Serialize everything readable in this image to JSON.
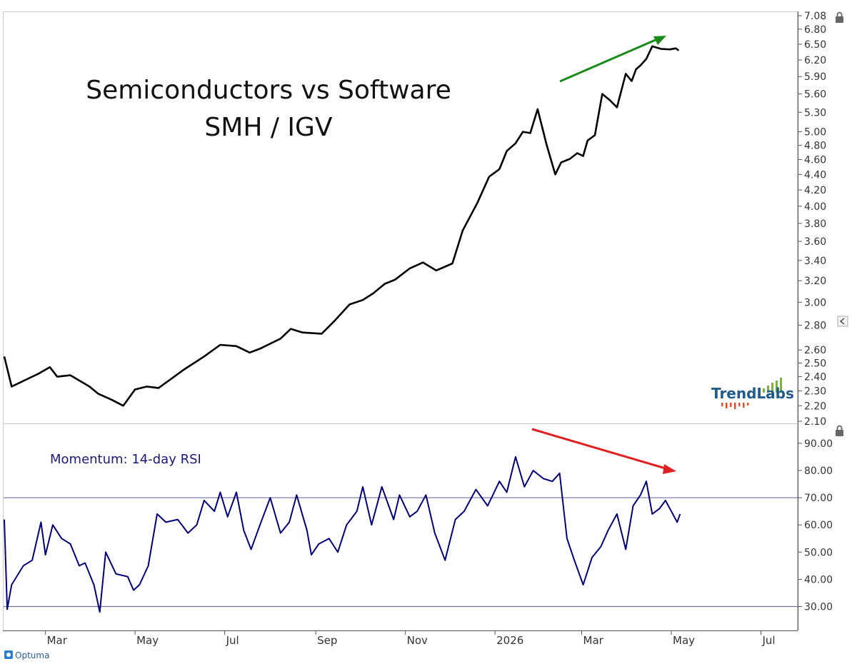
{
  "title_line1": "Semiconductors vs Software",
  "title_line2": "SMH / IGV",
  "rsi_label": "Momentum: 14-day RSI",
  "brand": {
    "logo_text": "TrendLabs",
    "footer_text": "Optuma"
  },
  "colors": {
    "price_line": "#000000",
    "rsi_line": "#00007a",
    "rsi_label": "#1a1a7a",
    "up_arrow": "#1a8a1a",
    "down_arrow": "#e02020",
    "reference_lines": "#7070a0",
    "axis_text": "#333333",
    "logo_text": "#1f5b8c",
    "logo_bars": "#7ab33a",
    "logo_accent": "#e2502a",
    "footer_icon": "#2a7fd0"
  },
  "icons": [
    "lock-icon",
    "lock-icon",
    "collapse-icon",
    "optuma-logo-icon"
  ],
  "chart_data": [
    {
      "type": "line",
      "name": "SMH / IGV ratio",
      "y_scale": "log",
      "ylim": [
        2.1,
        7.08
      ],
      "y_ticks": [
        "7.08",
        "6.80",
        "6.50",
        "6.20",
        "5.90",
        "5.60",
        "5.30",
        "5.00",
        "4.80",
        "4.60",
        "4.40",
        "4.20",
        "4.00",
        "3.80",
        "3.60",
        "3.40",
        "3.20",
        "3.00",
        "2.80",
        "2.60",
        "2.50",
        "2.40",
        "2.30",
        "2.20",
        "2.10"
      ],
      "x": [
        "2025-02-01",
        "2025-02-06",
        "2025-02-16",
        "2025-02-24",
        "2025-03-04",
        "2025-03-09",
        "2025-03-18",
        "2025-03-31",
        "2025-04-06",
        "2025-04-15",
        "2025-04-23",
        "2025-05-01",
        "2025-05-09",
        "2025-05-17",
        "2025-05-25",
        "2025-06-03",
        "2025-06-17",
        "2025-06-28",
        "2025-07-09",
        "2025-07-18",
        "2025-07-25",
        "2025-08-08",
        "2025-08-15",
        "2025-08-23",
        "2025-09-05",
        "2025-09-14",
        "2025-09-24",
        "2025-10-03",
        "2025-10-10",
        "2025-10-18",
        "2025-10-25",
        "2025-11-04",
        "2025-11-13",
        "2025-11-22",
        "2025-12-03",
        "2025-12-10",
        "2025-12-20",
        "2025-12-28",
        "2026-01-04",
        "2026-01-09",
        "2026-01-15",
        "2026-01-20",
        "2026-01-25",
        "2026-01-30",
        "2026-02-05",
        "2026-02-11",
        "2026-02-15",
        "2026-02-21",
        "2026-02-26",
        "2026-03-02",
        "2026-03-05",
        "2026-03-10",
        "2026-03-15",
        "2026-03-20",
        "2026-03-25",
        "2026-03-31",
        "2026-04-04",
        "2026-04-07",
        "2026-04-10",
        "2026-04-14",
        "2026-04-18",
        "2026-04-24",
        "2026-04-30",
        "2026-05-04",
        "2026-05-06"
      ],
      "values": [
        2.55,
        2.33,
        2.38,
        2.42,
        2.47,
        2.4,
        2.41,
        2.33,
        2.28,
        2.24,
        2.2,
        2.31,
        2.33,
        2.32,
        2.38,
        2.45,
        2.55,
        2.64,
        2.63,
        2.58,
        2.61,
        2.69,
        2.77,
        2.74,
        2.73,
        2.84,
        2.98,
        3.02,
        3.08,
        3.17,
        3.21,
        3.32,
        3.38,
        3.3,
        3.37,
        3.72,
        4.04,
        4.37,
        4.47,
        4.72,
        4.83,
        5.0,
        4.98,
        5.35,
        4.82,
        4.4,
        4.56,
        4.61,
        4.69,
        4.65,
        4.87,
        4.95,
        5.6,
        5.5,
        5.38,
        5.95,
        5.82,
        6.03,
        6.1,
        6.22,
        6.46,
        6.41,
        6.4,
        6.42,
        6.38
      ]
    },
    {
      "type": "line",
      "name": "Momentum: 14-day RSI",
      "ylim": [
        22,
        96
      ],
      "y_ticks": [
        "90.00",
        "80.00",
        "70.00",
        "60.00",
        "50.00",
        "40.00",
        "30.00"
      ],
      "reference_lines": [
        70,
        30
      ],
      "x": [
        "2025-02-01",
        "2025-02-03",
        "2025-02-06",
        "2025-02-14",
        "2025-02-20",
        "2025-02-26",
        "2025-03-01",
        "2025-03-06",
        "2025-03-12",
        "2025-03-18",
        "2025-03-24",
        "2025-03-28",
        "2025-04-03",
        "2025-04-07",
        "2025-04-11",
        "2025-04-18",
        "2025-04-26",
        "2025-04-30",
        "2025-05-04",
        "2025-05-10",
        "2025-05-16",
        "2025-05-22",
        "2025-05-30",
        "2025-06-06",
        "2025-06-12",
        "2025-06-17",
        "2025-06-24",
        "2025-06-28",
        "2025-07-03",
        "2025-07-09",
        "2025-07-14",
        "2025-07-19",
        "2025-07-25",
        "2025-08-01",
        "2025-08-08",
        "2025-08-14",
        "2025-08-19",
        "2025-08-26",
        "2025-08-29",
        "2025-09-03",
        "2025-09-10",
        "2025-09-16",
        "2025-09-22",
        "2025-09-29",
        "2025-10-03",
        "2025-10-09",
        "2025-10-16",
        "2025-10-24",
        "2025-10-28",
        "2025-11-04",
        "2025-11-09",
        "2025-11-15",
        "2025-11-21",
        "2025-11-28",
        "2025-12-05",
        "2025-12-11",
        "2025-12-19",
        "2025-12-27",
        "2026-01-04",
        "2026-01-09",
        "2026-01-15",
        "2026-01-21",
        "2026-01-27",
        "2026-02-03",
        "2026-02-09",
        "2026-02-14",
        "2026-02-19",
        "2026-02-24",
        "2026-03-02",
        "2026-03-08",
        "2026-03-14",
        "2026-03-19",
        "2026-03-25",
        "2026-03-31",
        "2026-04-05",
        "2026-04-10",
        "2026-04-14",
        "2026-04-18",
        "2026-04-23",
        "2026-04-27",
        "2026-05-01",
        "2026-05-05",
        "2026-05-07"
      ],
      "values": [
        62,
        29,
        38,
        45,
        47,
        61,
        49,
        60,
        55,
        53,
        45,
        46,
        38,
        28,
        50,
        42,
        41,
        36,
        38,
        45,
        64,
        61,
        62,
        57,
        60,
        69,
        65,
        72,
        63,
        72,
        58,
        51,
        60,
        70,
        57,
        61,
        71,
        58,
        49,
        53,
        55,
        50,
        60,
        65,
        74,
        60,
        74,
        62,
        71,
        63,
        65,
        71,
        57,
        47,
        62,
        65,
        73,
        67,
        76,
        72,
        85,
        74,
        80,
        77,
        76,
        79,
        55,
        47,
        38,
        48,
        52,
        58,
        64,
        51,
        67,
        71,
        76,
        64,
        66,
        69,
        65,
        61,
        64
      ]
    }
  ],
  "x_axis_labels": [
    "Mar",
    "May",
    "Jul",
    "Sep",
    "Nov",
    "2026",
    "Mar",
    "May",
    "Jul"
  ],
  "x_axis_dates": [
    "2025-03-01",
    "2025-05-01",
    "2025-07-01",
    "2025-09-01",
    "2025-11-01",
    "2026-01-01",
    "2026-03-01",
    "2026-05-01",
    "2026-07-01"
  ]
}
